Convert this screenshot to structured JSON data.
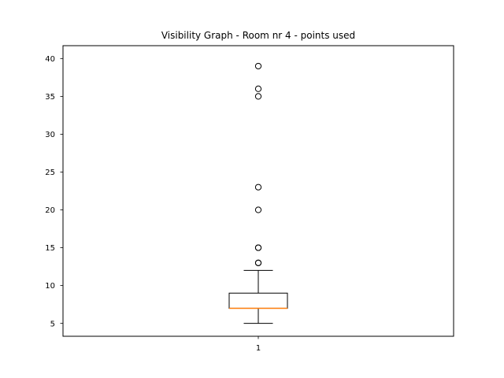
{
  "chart_data": {
    "type": "box",
    "title": "Visibility Graph - Room nr 4 - points used",
    "xlabel": "",
    "ylabel": "",
    "categories": [
      "1"
    ],
    "ylim": [
      3.3,
      41.7
    ],
    "yticks": [
      5,
      10,
      15,
      20,
      25,
      30,
      35,
      40
    ],
    "grid": false,
    "boxes": [
      {
        "label": "1",
        "whisker_low": 5,
        "q1": 7,
        "median": 7,
        "q3": 9,
        "whisker_high": 12,
        "outliers": [
          13,
          13,
          15,
          15,
          20,
          23,
          35,
          36,
          39
        ]
      }
    ],
    "colors": {
      "median": "#ff7f0e",
      "box": "#000000",
      "frame": "#000000"
    }
  }
}
